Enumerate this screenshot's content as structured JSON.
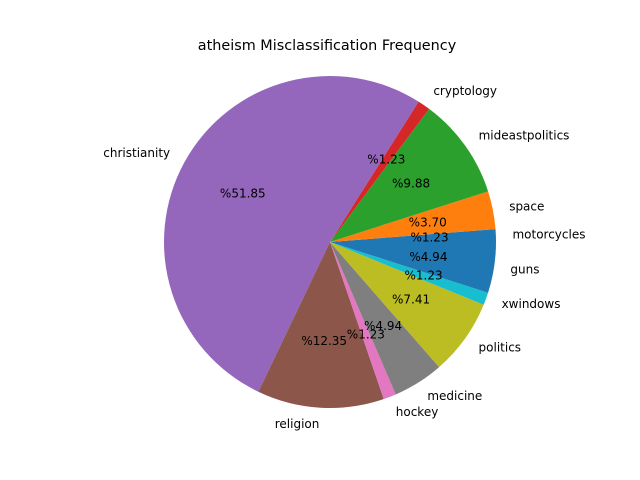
{
  "chart_data": {
    "type": "pie",
    "title": "atheism Misclassification Frequency",
    "pct_prefix": "%",
    "slices": [
      {
        "label": "motorcycles",
        "value": 1.23,
        "pct_text": "1.23",
        "color": "#1f77b4"
      },
      {
        "label": "space",
        "value": 3.7,
        "pct_text": "3.70",
        "color": "#ff7f0e"
      },
      {
        "label": "mideastpolitics",
        "value": 9.88,
        "pct_text": "9.88",
        "color": "#2ca02c"
      },
      {
        "label": "cryptology",
        "value": 1.23,
        "pct_text": "1.23",
        "color": "#d62728"
      },
      {
        "label": "christianity",
        "value": 51.85,
        "pct_text": "51.85",
        "color": "#9467bd"
      },
      {
        "label": "religion",
        "value": 12.35,
        "pct_text": "12.35",
        "color": "#8c564b"
      },
      {
        "label": "hockey",
        "value": 1.23,
        "pct_text": "1.23",
        "color": "#e377c2"
      },
      {
        "label": "medicine",
        "value": 4.94,
        "pct_text": "4.94",
        "color": "#7f7f7f"
      },
      {
        "label": "politics",
        "value": 7.41,
        "pct_text": "7.41",
        "color": "#bcbd22"
      },
      {
        "label": "xwindows",
        "value": 1.23,
        "pct_text": "1.23",
        "color": "#17becf"
      },
      {
        "label": "guns",
        "value": 4.94,
        "pct_text": "4.94",
        "color": "#1f77b4"
      }
    ]
  }
}
